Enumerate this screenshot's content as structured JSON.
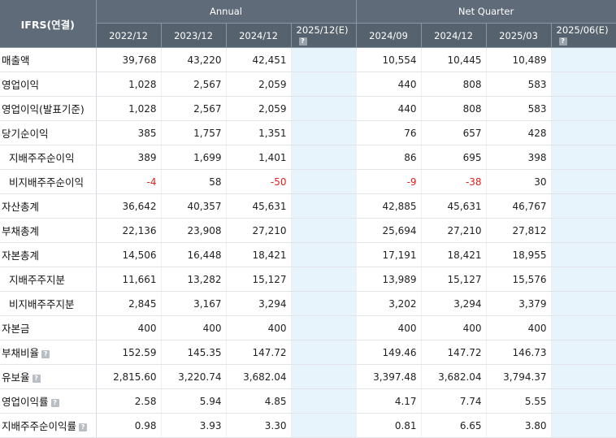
{
  "header": {
    "corner": "IFRS(연결)",
    "group_annual": "Annual",
    "group_quarter": "Net Quarter",
    "periods": [
      "2022/12",
      "2023/12",
      "2024/12",
      "2025/12(E)",
      "2024/09",
      "2024/12",
      "2025/03",
      "2025/06(E)"
    ]
  },
  "help_glyph": "?",
  "rows": [
    {
      "label": "매출액",
      "indent": false,
      "help": false,
      "values": [
        "39,768",
        "43,220",
        "42,451",
        "",
        "10,554",
        "10,445",
        "10,489",
        ""
      ]
    },
    {
      "label": "영업이익",
      "indent": false,
      "help": false,
      "values": [
        "1,028",
        "2,567",
        "2,059",
        "",
        "440",
        "808",
        "583",
        ""
      ]
    },
    {
      "label": "영업이익(발표기준)",
      "indent": false,
      "help": false,
      "values": [
        "1,028",
        "2,567",
        "2,059",
        "",
        "440",
        "808",
        "583",
        ""
      ]
    },
    {
      "label": "당기순이익",
      "indent": false,
      "help": false,
      "values": [
        "385",
        "1,757",
        "1,351",
        "",
        "76",
        "657",
        "428",
        ""
      ]
    },
    {
      "label": "지배주주순이익",
      "indent": true,
      "help": false,
      "values": [
        "389",
        "1,699",
        "1,401",
        "",
        "86",
        "695",
        "398",
        ""
      ]
    },
    {
      "label": "비지배주주순이익",
      "indent": true,
      "help": false,
      "values": [
        "-4",
        "58",
        "-50",
        "",
        "-9",
        "-38",
        "30",
        ""
      ]
    },
    {
      "label": "자산총계",
      "indent": false,
      "help": false,
      "values": [
        "36,642",
        "40,357",
        "45,631",
        "",
        "42,885",
        "45,631",
        "46,767",
        ""
      ]
    },
    {
      "label": "부채총계",
      "indent": false,
      "help": false,
      "values": [
        "22,136",
        "23,908",
        "27,210",
        "",
        "25,694",
        "27,210",
        "27,812",
        ""
      ]
    },
    {
      "label": "자본총계",
      "indent": false,
      "help": false,
      "values": [
        "14,506",
        "16,448",
        "18,421",
        "",
        "17,191",
        "18,421",
        "18,955",
        ""
      ]
    },
    {
      "label": "지배주주지분",
      "indent": true,
      "help": false,
      "values": [
        "11,661",
        "13,282",
        "15,127",
        "",
        "13,989",
        "15,127",
        "15,576",
        ""
      ]
    },
    {
      "label": "비지배주주지분",
      "indent": true,
      "help": false,
      "values": [
        "2,845",
        "3,167",
        "3,294",
        "",
        "3,202",
        "3,294",
        "3,379",
        ""
      ]
    },
    {
      "label": "자본금",
      "indent": false,
      "help": false,
      "values": [
        "400",
        "400",
        "400",
        "",
        "400",
        "400",
        "400",
        ""
      ]
    },
    {
      "label": "부채비율",
      "indent": false,
      "help": true,
      "values": [
        "152.59",
        "145.35",
        "147.72",
        "",
        "149.46",
        "147.72",
        "146.73",
        ""
      ]
    },
    {
      "label": "유보율",
      "indent": false,
      "help": true,
      "values": [
        "2,815.60",
        "3,220.74",
        "3,682.04",
        "",
        "3,397.48",
        "3,682.04",
        "3,794.37",
        ""
      ]
    },
    {
      "label": "영업이익률",
      "indent": false,
      "help": true,
      "values": [
        "2.58",
        "5.94",
        "4.85",
        "",
        "4.17",
        "7.74",
        "5.55",
        ""
      ]
    },
    {
      "label": "지배주주순이익률",
      "indent": false,
      "help": true,
      "values": [
        "0.98",
        "3.93",
        "3.30",
        "",
        "0.81",
        "6.65",
        "3.80",
        ""
      ]
    }
  ]
}
